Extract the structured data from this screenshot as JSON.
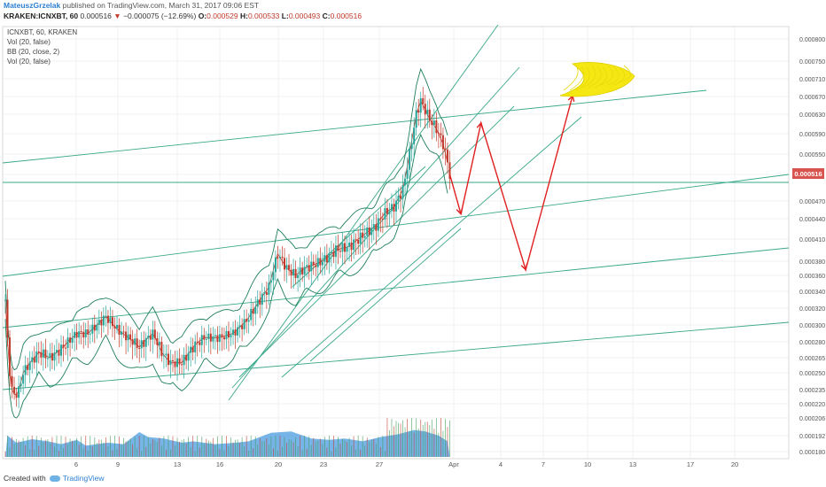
{
  "header": {
    "author": "MateuszGrzelak",
    "published": "published on TradingView.com, March 31, 2017 09:06 EST",
    "symbol": "KRAKEN:ICNXBT, 60",
    "last": "0.000516",
    "change_arrow": "▼",
    "change": "−0.000075 (−12.69%)",
    "o_label": "O:",
    "o_value": "0.000529",
    "h_label": "H:",
    "h_value": "0.000533",
    "l_label": "L:",
    "l_value": "0.000493",
    "c_label": "C:",
    "c_value": "0.000516"
  },
  "legend": {
    "line1": "ICNXBT, 60, KRAKEN",
    "line2": "Vol (20, false)",
    "line3": "BB (20, close, 2)",
    "line4": "Vol (20, false)"
  },
  "price_tag": "0.000516",
  "footer": {
    "created_with": "Created with",
    "brand": "TradingView"
  },
  "colors": {
    "candle_up": "#26a69a",
    "candle_down": "#c0392b",
    "trend_line": "#3aa88a",
    "bollinger": "#1e7e5a",
    "projection": "#e02020",
    "moon": "#f5e812",
    "price_tag": "#d9534f",
    "volume": "#4a9be0"
  },
  "chart_data": {
    "type": "candlestick",
    "title": "ICNXBT, 60, KRAKEN",
    "x_ticks": [
      "6",
      "9",
      "13",
      "16",
      "20",
      "23",
      "27",
      "Apr",
      "4",
      "7",
      "10",
      "13",
      "17",
      "20"
    ],
    "y_ticks": [
      "0.000800",
      "0.000750",
      "0.000710",
      "0.000670",
      "0.000630",
      "0.000590",
      "0.000550",
      "0.000516",
      "0.000470",
      "0.000440",
      "0.000410",
      "0.000380",
      "0.000360",
      "0.000340",
      "0.000320",
      "0.000300",
      "0.000280",
      "0.000265",
      "0.000250",
      "0.000235",
      "0.000220",
      "0.000206",
      "0.000192",
      "0.000180"
    ],
    "last_price": 0.000516,
    "close_path": [
      [
        0,
        0.00033
      ],
      [
        0.05,
        0.00031
      ],
      [
        0.12,
        0.00027
      ],
      [
        0.25,
        0.00024
      ],
      [
        0.35,
        0.00023
      ],
      [
        0.55,
        0.00023
      ],
      [
        0.8,
        0.00025
      ],
      [
        1.1,
        0.00026
      ],
      [
        1.5,
        0.00027
      ],
      [
        2.0,
        0.000265
      ],
      [
        2.6,
        0.000275
      ],
      [
        3.2,
        0.00029
      ],
      [
        3.7,
        0.00029
      ],
      [
        4.1,
        0.0003
      ],
      [
        4.5,
        0.00031
      ],
      [
        5.0,
        0.000295
      ],
      [
        5.5,
        0.000285
      ],
      [
        6.0,
        0.000275
      ],
      [
        6.6,
        0.00029
      ],
      [
        7.0,
        0.00027
      ],
      [
        7.4,
        0.00026
      ],
      [
        7.9,
        0.00026
      ],
      [
        8.4,
        0.000275
      ],
      [
        8.9,
        0.000285
      ],
      [
        9.6,
        0.000285
      ],
      [
        10.2,
        0.00029
      ],
      [
        10.8,
        0.000305
      ],
      [
        11.4,
        0.00033
      ],
      [
        11.8,
        0.000345
      ],
      [
        12.2,
        0.00039
      ],
      [
        12.6,
        0.00037
      ],
      [
        13.0,
        0.00036
      ],
      [
        13.4,
        0.00037
      ],
      [
        13.8,
        0.000375
      ],
      [
        14.2,
        0.00038
      ],
      [
        14.8,
        0.000395
      ],
      [
        15.4,
        0.0004
      ],
      [
        15.8,
        0.00041
      ],
      [
        16.2,
        0.00042
      ],
      [
        16.6,
        0.00043
      ],
      [
        17.0,
        0.00045
      ],
      [
        17.4,
        0.00046
      ],
      [
        17.8,
        0.00049
      ],
      [
        18.1,
        0.00055
      ],
      [
        18.4,
        0.00063
      ],
      [
        18.6,
        0.00066
      ],
      [
        18.8,
        0.00064
      ],
      [
        19.0,
        0.00062
      ],
      [
        19.3,
        0.0006
      ],
      [
        19.6,
        0.00057
      ],
      [
        19.8,
        0.000535
      ],
      [
        19.9,
        0.000516
      ]
    ],
    "volume_peaks": [
      [
        0.1,
        0.3
      ],
      [
        0.5,
        0.2
      ],
      [
        1.2,
        0.25
      ],
      [
        1.9,
        0.22
      ],
      [
        2.5,
        0.18
      ],
      [
        3.2,
        0.24
      ],
      [
        3.6,
        0.16
      ],
      [
        4.6,
        0.2
      ],
      [
        5.3,
        0.18
      ],
      [
        6.0,
        0.35
      ],
      [
        6.4,
        0.28
      ],
      [
        7.1,
        0.26
      ],
      [
        7.9,
        0.2
      ],
      [
        8.4,
        0.22
      ],
      [
        9.4,
        0.18
      ],
      [
        10.3,
        0.2
      ],
      [
        10.9,
        0.22
      ],
      [
        11.9,
        0.34
      ],
      [
        12.8,
        0.36
      ],
      [
        13.7,
        0.26
      ],
      [
        14.5,
        0.24
      ],
      [
        15.2,
        0.26
      ],
      [
        16.0,
        0.22
      ],
      [
        16.8,
        0.28
      ],
      [
        17.6,
        0.32
      ],
      [
        18.3,
        0.38
      ],
      [
        18.8,
        0.36
      ],
      [
        19.4,
        0.3
      ],
      [
        19.8,
        0.22
      ]
    ],
    "projection": [
      [
        19.9,
        0.000516
      ],
      [
        20.4,
        0.000448
      ],
      [
        21.3,
        0.000612
      ],
      [
        23.3,
        0.000368
      ],
      [
        25.4,
        0.000672
      ]
    ],
    "annotation": "yellow crescent moon drawing"
  }
}
